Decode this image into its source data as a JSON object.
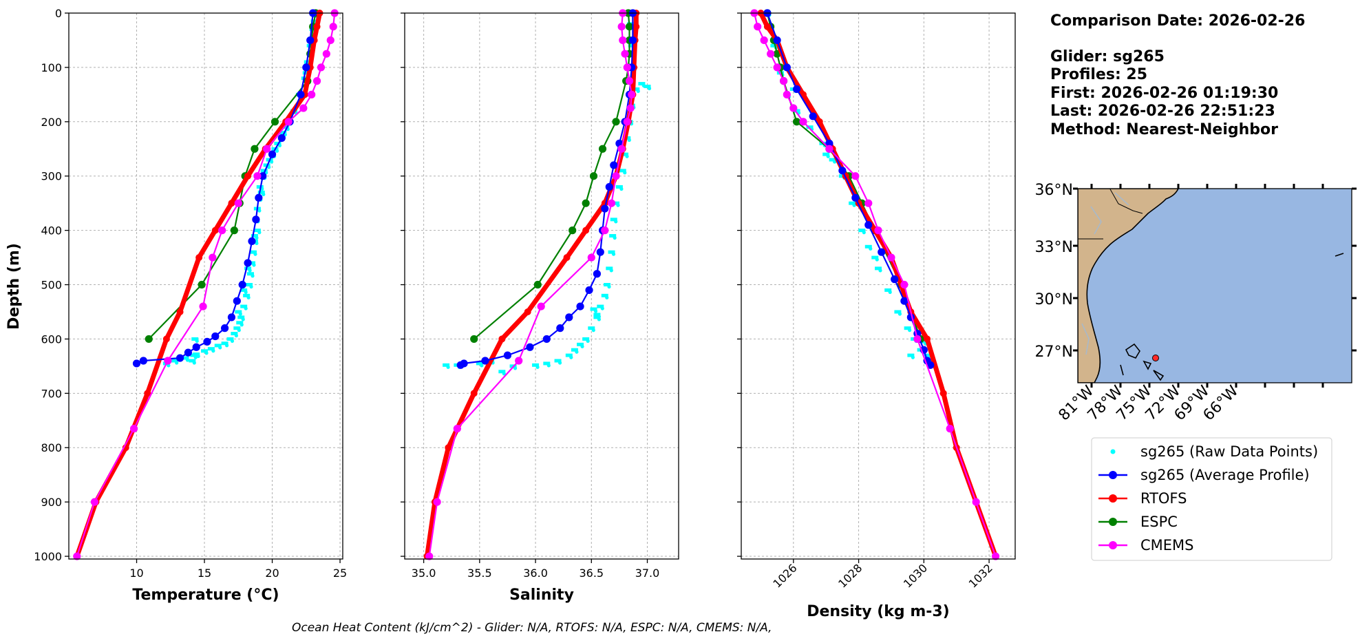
{
  "chart_data": [
    {
      "type": "line",
      "xlabel": "Temperature (°C)",
      "ylabel": "Depth (m)",
      "xlim": [
        5,
        25.2
      ],
      "ylim": [
        1005,
        0
      ],
      "xticks": [
        10,
        15,
        20,
        25
      ],
      "yticks": [
        0,
        100,
        200,
        300,
        400,
        500,
        600,
        700,
        800,
        900,
        1000
      ],
      "grid": true,
      "series": [
        {
          "name": "sg265 (Raw Data Points)",
          "style": "scatter",
          "x": [
            23.2,
            23.0,
            22.8,
            22.6,
            22.4,
            22.0,
            21.6,
            21.2,
            20.8,
            20.4,
            20.0,
            19.6,
            19.3,
            19.1,
            19.0,
            18.9,
            18.8,
            18.9,
            18.7,
            18.6,
            18.5,
            18.4,
            18.3,
            18.1,
            17.9,
            17.7,
            17.6,
            17.4,
            17.2,
            16.9,
            16.5,
            16.0,
            15.5,
            15.0,
            14.4,
            14.2,
            13.6,
            12.8,
            12.2,
            23.1,
            22.5,
            21.0,
            20.2,
            19.8,
            19.4,
            19.2,
            18.7,
            18.2,
            17.9,
            17.5,
            14.3,
            14.1
          ],
          "y": [
            5,
            30,
            60,
            90,
            120,
            150,
            180,
            200,
            220,
            240,
            260,
            280,
            300,
            320,
            340,
            360,
            380,
            400,
            420,
            440,
            460,
            480,
            500,
            520,
            540,
            560,
            570,
            580,
            590,
            600,
            608,
            612,
            618,
            622,
            628,
            630,
            635,
            640,
            645,
            15,
            110,
            210,
            250,
            270,
            290,
            330,
            410,
            470,
            510,
            550,
            600,
            640
          ]
        },
        {
          "name": "sg265 (Average Profile)",
          "style": "line-markers",
          "x": [
            23.0,
            22.8,
            22.5,
            22.1,
            21.3,
            20.7,
            20.0,
            19.3,
            19.0,
            18.8,
            18.5,
            18.2,
            17.8,
            17.4,
            17.0,
            16.5,
            15.8,
            15.2,
            14.4,
            13.8,
            13.2,
            10.5,
            10.0
          ],
          "y": [
            0,
            50,
            100,
            150,
            200,
            230,
            260,
            300,
            340,
            380,
            420,
            460,
            500,
            530,
            560,
            580,
            595,
            605,
            615,
            625,
            635,
            640,
            645
          ]
        },
        {
          "name": "RTOFS",
          "style": "line-markers-thick",
          "x": [
            23.5,
            23.3,
            23.1,
            22.8,
            22.4,
            21.0,
            19.5,
            18.2,
            17.0,
            15.8,
            14.6,
            13.2,
            12.2,
            10.8,
            9.2,
            7.0,
            5.6
          ],
          "y": [
            0,
            25,
            50,
            100,
            150,
            200,
            250,
            300,
            350,
            400,
            450,
            550,
            600,
            700,
            800,
            900,
            1000
          ]
        },
        {
          "name": "ESPC",
          "style": "line-markers",
          "x": [
            23.2,
            23.0,
            22.9,
            22.8,
            22.7,
            22.6,
            20.2,
            18.7,
            18.0,
            17.6,
            17.2,
            14.8,
            10.9
          ],
          "y": [
            0,
            25,
            50,
            75,
            100,
            125,
            200,
            250,
            300,
            350,
            400,
            500,
            600
          ]
        },
        {
          "name": "CMEMS",
          "style": "line-markers",
          "x": [
            24.6,
            24.5,
            24.3,
            24.0,
            23.6,
            23.3,
            22.9,
            22.3,
            21.2,
            19.6,
            18.9,
            17.5,
            16.3,
            15.6,
            14.9,
            12.3,
            9.8,
            6.9,
            5.6
          ],
          "y": [
            0,
            25,
            50,
            75,
            100,
            125,
            150,
            175,
            200,
            250,
            300,
            350,
            400,
            450,
            540,
            640,
            765,
            900,
            1000
          ]
        }
      ]
    },
    {
      "type": "line",
      "xlabel": "Salinity",
      "xlim": [
        34.83,
        37.28
      ],
      "ylim": [
        1005,
        0
      ],
      "xticks": [
        35.0,
        35.5,
        36.0,
        36.5,
        37.0
      ],
      "grid": true,
      "series": [
        {
          "name": "sg265 (Raw Data Points)",
          "style": "scatter",
          "x": [
            36.85,
            36.86,
            36.87,
            36.95,
            37.0,
            36.9,
            36.86,
            36.84,
            36.82,
            36.8,
            36.78,
            36.75,
            36.72,
            36.7,
            36.69,
            36.68,
            36.66,
            36.64,
            36.62,
            36.58,
            36.55,
            36.5,
            36.45,
            36.4,
            36.35,
            36.3,
            36.2,
            36.1,
            36.0,
            35.8,
            35.6,
            35.5,
            35.3,
            35.7,
            36.52,
            36.55,
            35.2
          ],
          "y": [
            20,
            60,
            100,
            130,
            135,
            140,
            170,
            200,
            230,
            260,
            290,
            320,
            350,
            380,
            410,
            440,
            470,
            500,
            520,
            540,
            560,
            580,
            600,
            610,
            620,
            630,
            640,
            645,
            648,
            650,
            640,
            645,
            648,
            660,
            545,
            555,
            648
          ]
        },
        {
          "name": "sg265 (Average Profile)",
          "style": "line-markers",
          "x": [
            36.87,
            36.87,
            36.86,
            36.84,
            36.8,
            36.75,
            36.7,
            36.66,
            36.62,
            36.6,
            36.58,
            36.55,
            36.48,
            36.4,
            36.3,
            36.22,
            36.1,
            35.95,
            35.75,
            35.55,
            35.36,
            35.33
          ],
          "y": [
            0,
            50,
            100,
            150,
            200,
            240,
            280,
            320,
            360,
            400,
            440,
            480,
            510,
            540,
            560,
            580,
            600,
            615,
            630,
            640,
            645,
            648
          ]
        },
        {
          "name": "RTOFS",
          "style": "line-markers-thick",
          "x": [
            36.9,
            36.9,
            36.89,
            36.88,
            36.87,
            36.83,
            36.78,
            36.72,
            36.62,
            36.45,
            36.28,
            35.93,
            35.7,
            35.45,
            35.22,
            35.1,
            35.03
          ],
          "y": [
            0,
            25,
            50,
            100,
            150,
            200,
            250,
            300,
            350,
            400,
            450,
            550,
            600,
            700,
            800,
            900,
            1000
          ]
        },
        {
          "name": "ESPC",
          "style": "line-markers",
          "x": [
            36.83,
            36.84,
            36.84,
            36.84,
            36.83,
            36.81,
            36.72,
            36.6,
            36.52,
            36.45,
            36.33,
            36.02,
            35.45
          ],
          "y": [
            0,
            25,
            50,
            75,
            100,
            125,
            200,
            250,
            300,
            350,
            400,
            500,
            600
          ]
        },
        {
          "name": "CMEMS",
          "style": "line-markers",
          "x": [
            36.78,
            36.77,
            36.78,
            36.8,
            36.82,
            36.84,
            36.86,
            36.85,
            36.82,
            36.77,
            36.72,
            36.68,
            36.62,
            36.5,
            36.05,
            35.85,
            35.3,
            35.12,
            35.05
          ],
          "y": [
            0,
            25,
            50,
            75,
            100,
            125,
            150,
            175,
            200,
            250,
            300,
            350,
            400,
            450,
            540,
            640,
            765,
            900,
            1000
          ]
        }
      ]
    },
    {
      "type": "line",
      "xlabel": "Density (kg m-3)",
      "xlim": [
        1024.4,
        1032.8
      ],
      "ylim": [
        1005,
        0
      ],
      "xticks": [
        1026,
        1028,
        1030,
        1032
      ],
      "grid": true,
      "series": [
        {
          "name": "sg265 (Raw Data Points)",
          "style": "scatter",
          "x": [
            1025.2,
            1025.4,
            1025.6,
            1025.8,
            1026.1,
            1026.5,
            1026.9,
            1027.2,
            1027.5,
            1027.8,
            1028.1,
            1028.3,
            1028.6,
            1028.9,
            1029.2,
            1029.5,
            1029.7,
            1029.9,
            1030.1,
            1030.2,
            1030.3,
            1030.0,
            1029.6,
            1026.0,
            1027.0,
            1028.5
          ],
          "y": [
            0,
            60,
            110,
            150,
            180,
            210,
            240,
            270,
            300,
            350,
            400,
            430,
            470,
            510,
            550,
            580,
            600,
            620,
            630,
            640,
            650,
            605,
            630,
            140,
            260,
            450
          ]
        },
        {
          "name": "sg265 (Average Profile)",
          "style": "line-markers",
          "x": [
            1025.2,
            1025.5,
            1025.8,
            1026.1,
            1026.6,
            1027.1,
            1027.5,
            1027.9,
            1028.3,
            1028.7,
            1029.1,
            1029.4,
            1029.6,
            1029.8,
            1030.0,
            1030.1,
            1030.2
          ],
          "y": [
            0,
            50,
            100,
            140,
            190,
            240,
            290,
            340,
            390,
            440,
            490,
            530,
            560,
            590,
            620,
            640,
            648
          ]
        },
        {
          "name": "RTOFS",
          "style": "line-markers-thick",
          "x": [
            1025.0,
            1025.2,
            1025.5,
            1025.8,
            1026.3,
            1026.8,
            1027.2,
            1027.6,
            1028.0,
            1028.5,
            1029.0,
            1029.6,
            1030.1,
            1030.6,
            1031.0,
            1031.6,
            1032.2
          ],
          "y": [
            0,
            25,
            50,
            100,
            150,
            200,
            250,
            300,
            350,
            400,
            450,
            550,
            600,
            700,
            800,
            900,
            1000
          ]
        },
        {
          "name": "ESPC",
          "style": "line-markers",
          "x": [
            1025.2,
            1025.3,
            1025.4,
            1025.5,
            1025.6,
            1025.7,
            1026.1,
            1027.1,
            1027.7,
            1028.1,
            1028.5,
            1029.3,
            1029.9
          ],
          "y": [
            0,
            25,
            50,
            75,
            100,
            125,
            200,
            250,
            300,
            350,
            400,
            500,
            600
          ]
        },
        {
          "name": "CMEMS",
          "style": "line-markers",
          "x": [
            1024.8,
            1024.9,
            1025.1,
            1025.3,
            1025.5,
            1025.7,
            1025.8,
            1026.0,
            1026.3,
            1027.1,
            1027.9,
            1028.3,
            1028.6,
            1029.0,
            1029.4,
            1029.8,
            1030.8,
            1031.6,
            1032.2
          ],
          "y": [
            0,
            25,
            50,
            75,
            100,
            125,
            150,
            175,
            200,
            250,
            300,
            350,
            400,
            450,
            500,
            600,
            765,
            900,
            1000
          ]
        }
      ]
    }
  ],
  "colors": {
    "raw": "#00ffff",
    "average": "#0000ff",
    "rtofs": "#ff0000",
    "espc": "#008000",
    "cmems": "#ff00ff",
    "land": "#d2b48c",
    "ocean": "#98b7e2",
    "marker": "#ff2a2a"
  },
  "ticks": {
    "temperature": [
      "10",
      "15",
      "20",
      "25"
    ],
    "salinity": [
      "35.0",
      "35.5",
      "36.0",
      "36.5",
      "37.0"
    ],
    "density": [
      "1026",
      "1028",
      "1030",
      "1032"
    ],
    "depth": [
      "0",
      "100",
      "200",
      "300",
      "400",
      "500",
      "600",
      "700",
      "800",
      "900",
      "1000"
    ]
  },
  "labels": {
    "temperature": "Temperature (°C)",
    "salinity": "Salinity",
    "density": "Density (kg m-3)",
    "depth": "Depth (m)"
  },
  "info": {
    "comparison_date": "Comparison Date: 2026-02-26",
    "glider": "Glider: sg265",
    "profiles": "Profiles: 25",
    "first": "First: 2026-02-26 01:19:30",
    "last": "Last: 2026-02-26 22:51:23",
    "method": "Method: Nearest-Neighbor"
  },
  "map": {
    "lat_labels": [
      "36°N",
      "33°N",
      "30°N",
      "27°N"
    ],
    "lon_labels": [
      "81°W",
      "78°W",
      "75°W",
      "72°W",
      "69°W",
      "66°W"
    ]
  },
  "legend": {
    "entries": [
      {
        "label": "sg265 (Raw Data Points)",
        "color_key": "raw",
        "kind": "point"
      },
      {
        "label": "sg265 (Average Profile)",
        "color_key": "average",
        "kind": "line"
      },
      {
        "label": "RTOFS",
        "color_key": "rtofs",
        "kind": "line"
      },
      {
        "label": "ESPC",
        "color_key": "espc",
        "kind": "line"
      },
      {
        "label": "CMEMS",
        "color_key": "cmems",
        "kind": "line"
      }
    ]
  },
  "footer": "Ocean Heat Content (kJ/cm^2) - Glider: N/A,  RTOFS: N/A,  ESPC: N/A,  CMEMS: N/A,"
}
